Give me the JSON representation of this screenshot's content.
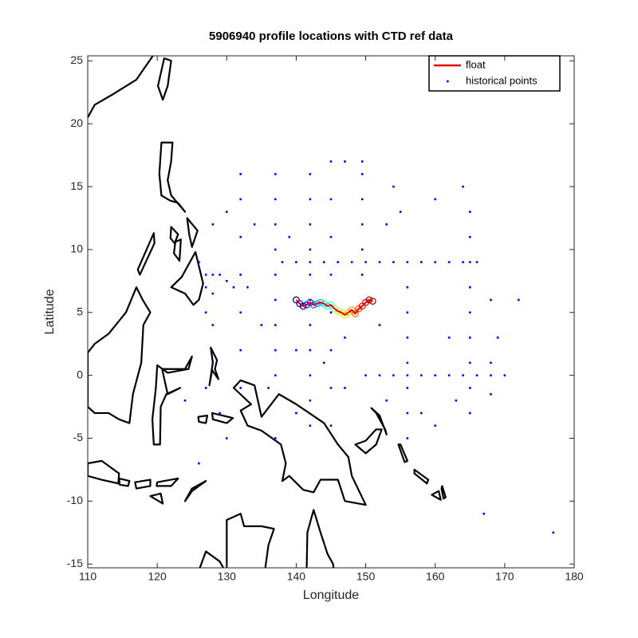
{
  "chart_data": {
    "type": "scatter",
    "title": "5906940 profile locations with CTD ref data",
    "xlabel": "Longitude",
    "ylabel": "Latitude",
    "xlim": [
      110,
      180
    ],
    "ylim": [
      -15.3,
      25.4
    ],
    "xticks": [
      110,
      120,
      130,
      140,
      150,
      160,
      170,
      180
    ],
    "yticks": [
      -15,
      -10,
      -5,
      0,
      5,
      10,
      15,
      20,
      25
    ],
    "legend_location": "northeast",
    "marker_colormap": "jet",
    "series": [
      {
        "name": "float",
        "color": "#e60000",
        "mode": "line-circles",
        "x": [
          140,
          140.5,
          141,
          141.5,
          142,
          142.5,
          143,
          143.5,
          144,
          144.5,
          145,
          145.5,
          146,
          146.5,
          147,
          147.5,
          148,
          148.5,
          149,
          149.5,
          150,
          150.5,
          151
        ],
        "y": [
          6,
          5.7,
          5.5,
          5.6,
          5.8,
          5.6,
          5.7,
          5.8,
          5.7,
          5.5,
          5.6,
          5.3,
          5.1,
          5.0,
          4.8,
          5.0,
          5.2,
          4.9,
          5.3,
          5.5,
          5.8,
          6.0,
          5.9
        ]
      },
      {
        "name": "historical points",
        "color": "#0000ff",
        "mode": "points",
        "x": [
          138,
          140,
          142,
          144,
          146,
          148,
          150,
          152,
          154,
          156,
          158,
          160,
          162,
          164,
          166,
          150,
          152,
          154,
          156,
          158,
          160,
          162,
          164,
          166,
          168,
          170,
          165,
          165,
          165,
          165,
          165,
          165,
          165,
          165,
          165,
          156,
          156,
          156,
          156,
          156,
          156,
          156,
          142,
          142,
          142,
          142,
          142,
          142,
          142,
          142,
          142,
          142,
          142,
          145,
          145,
          145,
          145,
          145,
          145,
          145,
          137,
          137,
          137,
          137,
          137,
          137,
          137,
          137,
          137,
          149.5,
          149.5,
          149.5,
          149.5,
          149.5,
          149.5,
          132,
          132,
          132,
          132,
          132,
          132,
          132,
          127,
          128,
          129,
          130,
          131,
          133,
          127,
          128,
          127,
          128,
          126,
          128,
          130,
          134,
          135,
          140,
          147,
          152,
          153,
          160,
          162,
          168,
          169,
          172,
          164,
          160,
          155,
          153,
          154,
          145,
          147,
          139,
          136,
          128,
          127,
          130,
          137,
          140,
          144,
          147,
          158,
          163,
          168,
          177,
          167,
          129,
          124,
          126,
          168
        ],
        "y": [
          9,
          9,
          9,
          9,
          9,
          9,
          9,
          9,
          9,
          9,
          9,
          9,
          9,
          9,
          9,
          0,
          0,
          0,
          0,
          0,
          0,
          0,
          0,
          0,
          0,
          0,
          -3,
          -1,
          1,
          3,
          5,
          7,
          9,
          11,
          13,
          -5,
          -3,
          -1,
          1,
          3,
          5,
          7,
          -4,
          -2,
          0,
          2,
          4,
          6,
          8,
          10,
          12,
          14,
          16,
          -4,
          -1,
          2,
          5,
          8,
          11,
          14,
          0,
          2,
          4,
          6,
          8,
          10,
          12,
          14,
          16,
          8,
          10,
          12,
          14,
          16,
          17,
          -1,
          2,
          5,
          8,
          11,
          14,
          16,
          8,
          8,
          8,
          7.5,
          7,
          7,
          7,
          6.5,
          5,
          4,
          9,
          12,
          13,
          12,
          4,
          2,
          3,
          4,
          -2,
          -4,
          3,
          6,
          3,
          6,
          15,
          14,
          13,
          12,
          15,
          17,
          17,
          11,
          -1,
          1,
          -1,
          -5,
          -5,
          -3,
          1,
          -1,
          -3,
          -2,
          1,
          -12.5,
          -11,
          -3,
          -2,
          -7,
          -1.5
        ]
      }
    ]
  }
}
